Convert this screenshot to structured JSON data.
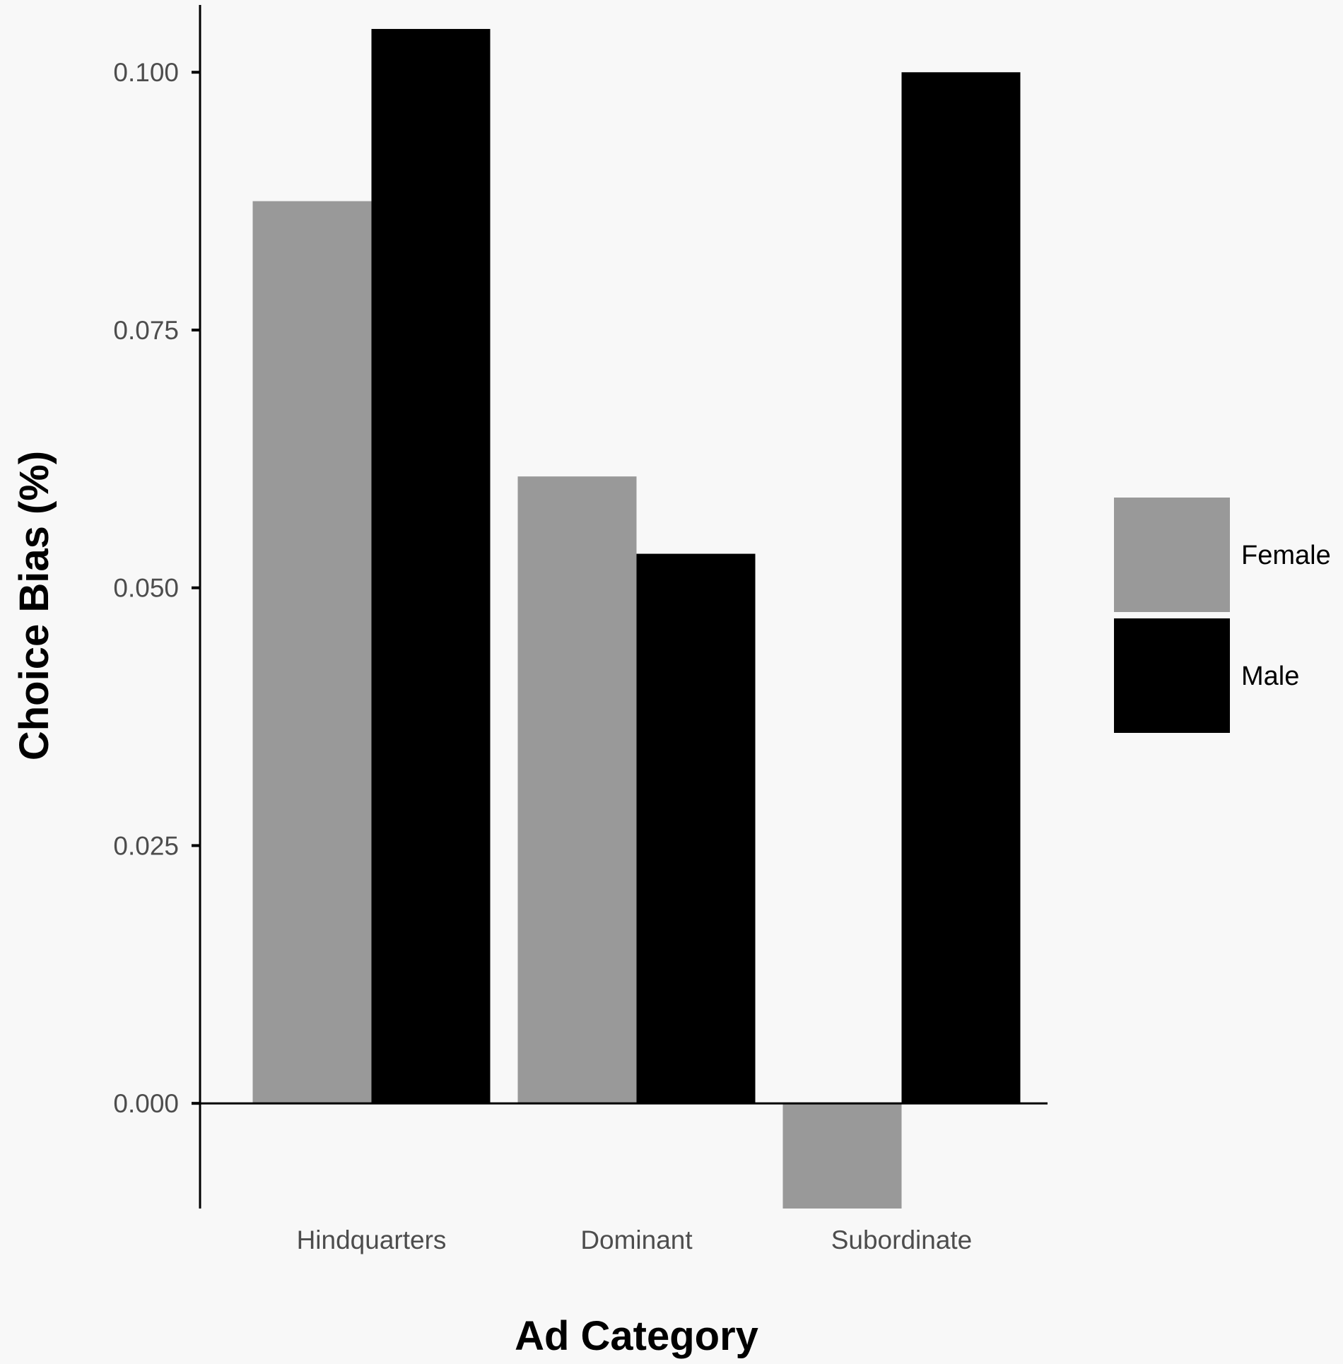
{
  "chart_data": {
    "type": "bar",
    "xlabel": "Ad Category",
    "ylabel": "Choice Bias (%)",
    "categories": [
      "Hindquarters",
      "Dominant",
      "Subordinate"
    ],
    "series": [
      {
        "name": "Female",
        "color": "#999999",
        "values": [
          0.0875,
          0.0608,
          -0.0102
        ]
      },
      {
        "name": "Male",
        "color": "#000000",
        "values": [
          0.1042,
          0.0533,
          0.1
        ]
      }
    ],
    "yticks": [
      {
        "value": 0.0,
        "label": "0.000"
      },
      {
        "value": 0.025,
        "label": "0.025"
      },
      {
        "value": 0.05,
        "label": "0.050"
      },
      {
        "value": 0.075,
        "label": "0.075"
      },
      {
        "value": 0.1,
        "label": "0.100"
      }
    ],
    "ylim": [
      -0.0102,
      0.1055
    ],
    "grid": false,
    "legend_position": "right"
  }
}
